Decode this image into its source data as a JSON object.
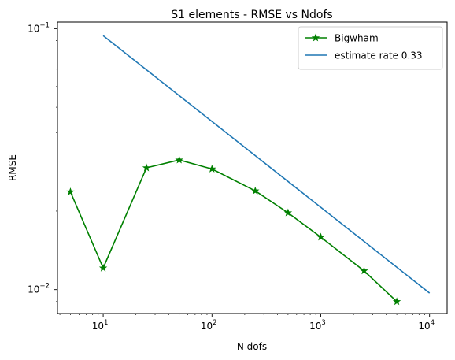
{
  "chart_data": {
    "type": "line",
    "title": "S1 elements - RMSE vs Ndofs",
    "xlabel": "N dofs",
    "ylabel": "RMSE",
    "xscale": "log",
    "yscale": "log",
    "xlim": [
      3.8,
      14500
    ],
    "ylim": [
      0.0081,
      0.106
    ],
    "grid": false,
    "legend_position": "top-right",
    "x_ticks": [
      {
        "value": 10,
        "base": "10",
        "exp": "1"
      },
      {
        "value": 100,
        "base": "10",
        "exp": "2"
      },
      {
        "value": 1000,
        "base": "10",
        "exp": "3"
      },
      {
        "value": 10000,
        "base": "10",
        "exp": "4"
      }
    ],
    "y_ticks": [
      {
        "value": 0.01,
        "base": "10",
        "exp": "−2"
      },
      {
        "value": 0.1,
        "base": "10",
        "exp": "−1"
      }
    ],
    "series": [
      {
        "name": "Bigwham",
        "color": "#008000",
        "marker": "star",
        "points": [
          {
            "x": 5,
            "y": 0.0237
          },
          {
            "x": 10,
            "y": 0.0121
          },
          {
            "x": 25,
            "y": 0.0293
          },
          {
            "x": 50,
            "y": 0.0314
          },
          {
            "x": 100,
            "y": 0.029
          },
          {
            "x": 250,
            "y": 0.0239
          },
          {
            "x": 500,
            "y": 0.0197
          },
          {
            "x": 1000,
            "y": 0.0159
          },
          {
            "x": 2500,
            "y": 0.0118
          },
          {
            "x": 5000,
            "y": 0.009
          }
        ]
      },
      {
        "name": "estimate rate 0.33",
        "color": "#1f77b4",
        "marker": "none",
        "points": [
          {
            "x": 10,
            "y": 0.094
          },
          {
            "x": 10000,
            "y": 0.0097
          }
        ]
      }
    ]
  }
}
